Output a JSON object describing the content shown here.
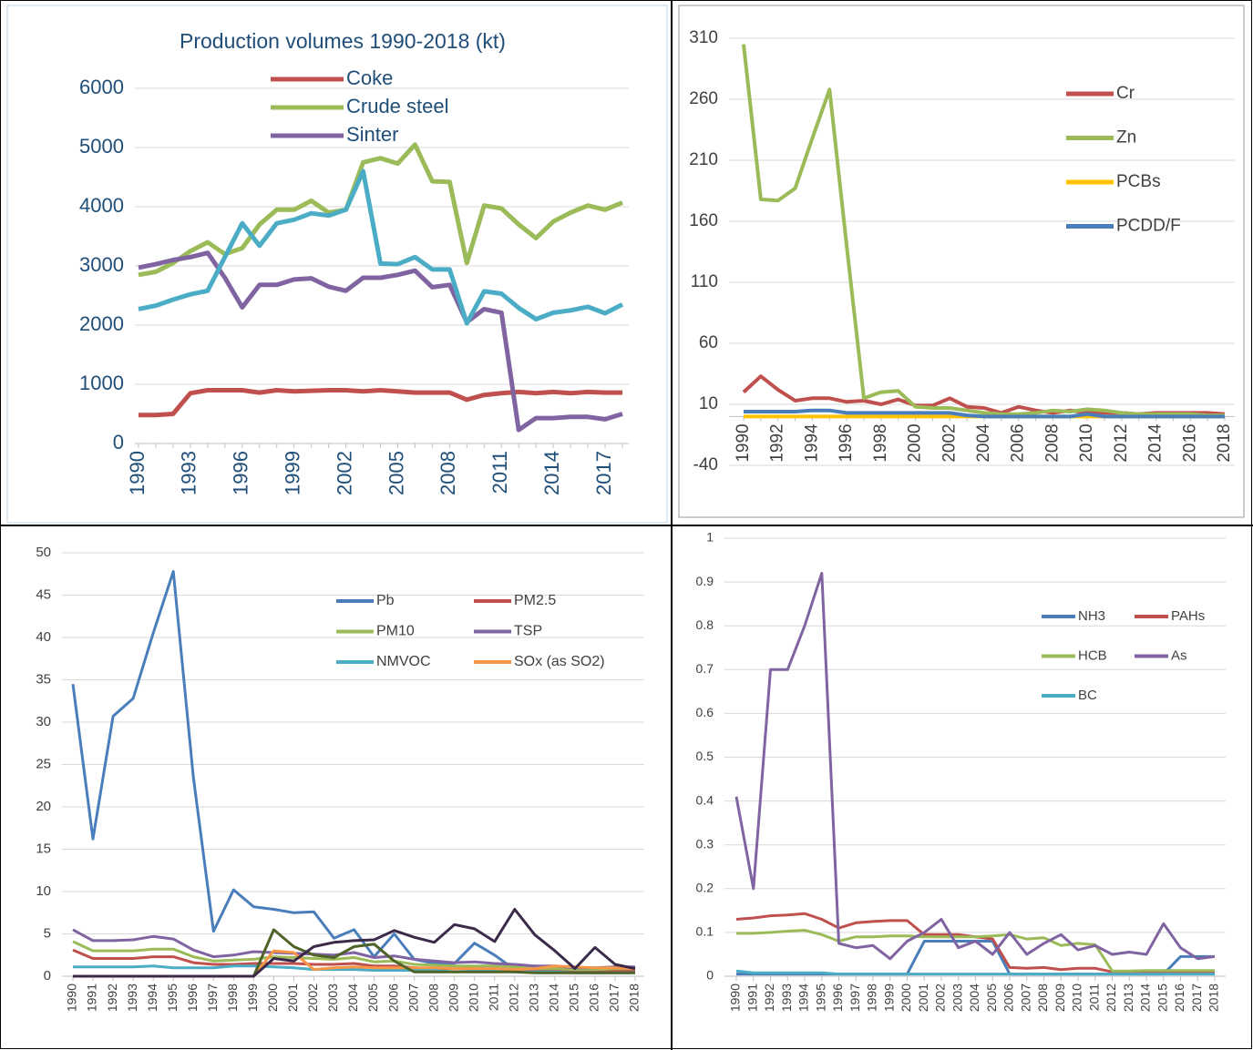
{
  "chart_data": [
    {
      "type": "line",
      "title": "Production volumes 1990-2018 (kt)",
      "categories": [
        "1990",
        null,
        null,
        "1993",
        null,
        null,
        "1996",
        null,
        null,
        "1999",
        null,
        null,
        "2002",
        null,
        null,
        "2005",
        null,
        null,
        "2008",
        null,
        null,
        "2011",
        null,
        null,
        "2014",
        null,
        null,
        "2017",
        null
      ],
      "ylim": [
        0,
        6000
      ],
      "yticks": [
        0,
        1000,
        2000,
        3000,
        4000,
        5000,
        6000
      ],
      "grid": true,
      "series": [
        {
          "name": "Coke",
          "color": "#c0504d",
          "values": [
            480,
            480,
            500,
            850,
            900,
            900,
            900,
            860,
            900,
            880,
            890,
            900,
            900,
            880,
            900,
            880,
            860,
            860,
            860,
            740,
            820,
            850,
            870,
            850,
            870,
            850,
            870,
            860,
            860
          ]
        },
        {
          "name": "Crude steel",
          "color": "#9bbb59",
          "values": [
            2850,
            2900,
            3050,
            3250,
            3400,
            3200,
            3300,
            3700,
            3950,
            3950,
            4100,
            3900,
            3950,
            4750,
            4820,
            4730,
            5050,
            4430,
            4420,
            3050,
            4020,
            3970,
            3700,
            3470,
            3750,
            3900,
            4020,
            3950,
            4070
          ]
        },
        {
          "name": "Sinter",
          "color": "#8064a2",
          "values": [
            2970,
            3030,
            3100,
            3150,
            3220,
            2800,
            2300,
            2680,
            2680,
            2770,
            2790,
            2650,
            2580,
            2800,
            2800,
            2850,
            2920,
            2640,
            2680,
            2050,
            2270,
            2210,
            230,
            430,
            430,
            450,
            450,
            410,
            500
          ]
        },
        {
          "color": "#4bacc6",
          "values": [
            2270,
            2330,
            2430,
            2520,
            2580,
            3150,
            3720,
            3340,
            3720,
            3780,
            3890,
            3850,
            3950,
            4600,
            3040,
            3030,
            3150,
            2940,
            2940,
            2030,
            2570,
            2530,
            2290,
            2100,
            2210,
            2250,
            2310,
            2200,
            2350
          ]
        }
      ]
    },
    {
      "type": "line",
      "categories": [
        "1990",
        null,
        "1992",
        null,
        "1994",
        null,
        "1996",
        null,
        "1998",
        null,
        "2000",
        null,
        "2002",
        null,
        "2004",
        null,
        "2006",
        null,
        "2008",
        null,
        "2010",
        null,
        "2012",
        null,
        "2014",
        null,
        "2016",
        null,
        "2018"
      ],
      "ylim": [
        -40,
        310
      ],
      "yticks": [
        -40,
        10,
        60,
        110,
        160,
        210,
        260,
        310
      ],
      "grid": true,
      "series": [
        {
          "name": "Cr",
          "color": "#c0504d",
          "values": [
            20,
            33,
            22,
            13,
            15,
            15,
            12,
            13,
            10,
            14,
            9,
            9,
            15,
            8,
            7,
            3,
            8,
            5,
            3,
            5,
            3,
            3,
            3,
            2,
            3,
            3,
            3,
            3,
            2
          ]
        },
        {
          "name": "Zn",
          "color": "#9bbb59",
          "values": [
            305,
            178,
            177,
            187,
            228,
            268,
            140,
            15,
            20,
            21,
            8,
            7,
            7,
            5,
            3,
            2,
            2,
            3,
            5,
            4,
            6,
            5,
            3,
            2,
            2,
            2,
            2,
            1,
            1
          ]
        },
        {
          "name": "PCBs",
          "color": "#ffc000",
          "values": [
            0,
            0,
            0,
            0,
            0,
            0,
            0,
            0,
            0,
            0,
            0,
            0,
            0,
            0,
            0,
            0,
            0,
            0,
            0,
            0,
            0,
            0,
            0,
            0,
            0,
            0,
            0,
            0,
            0
          ]
        },
        {
          "name": "PCDD/F",
          "color": "#4a7ebb",
          "values": [
            4,
            4,
            4,
            4,
            5,
            5,
            3,
            3,
            3,
            3,
            3,
            3,
            3,
            1,
            0,
            0,
            0,
            0,
            0,
            0,
            2,
            0,
            0,
            0,
            0,
            0,
            0,
            0,
            0
          ]
        }
      ]
    },
    {
      "type": "line",
      "categories": [
        "1990",
        "1991",
        "1992",
        "1993",
        "1994",
        "1995",
        "1996",
        "1997",
        "1998",
        "1999",
        "2000",
        "2001",
        "2002",
        "2003",
        "2004",
        "2005",
        "2006",
        "2007",
        "2008",
        "2009",
        "2010",
        "2011",
        "2012",
        "2013",
        "2014",
        "2015",
        "2016",
        "2017",
        "2018"
      ],
      "ylim": [
        0,
        50
      ],
      "yticks": [
        0,
        5,
        10,
        15,
        20,
        25,
        30,
        35,
        40,
        45,
        50
      ],
      "grid": true,
      "series": [
        {
          "name": "Pb",
          "color": "#4a7ebb",
          "values": [
            34.5,
            16.2,
            30.7,
            32.8,
            40.5,
            47.8,
            23.5,
            5.3,
            10.2,
            8.2,
            7.9,
            7.5,
            7.6,
            4.5,
            5.5,
            2.3,
            5,
            2,
            1.5,
            1.5,
            3.9,
            2.5,
            0.8,
            0.5,
            0.5,
            0.5,
            0.5,
            0.5,
            0.5
          ]
        },
        {
          "name": "PM2.5",
          "color": "#c0504d",
          "values": [
            3.1,
            2.1,
            2.1,
            2.1,
            2.3,
            2.3,
            1.6,
            1.4,
            1.4,
            1.5,
            1.5,
            1.5,
            1.4,
            1.4,
            1.5,
            1.2,
            1.2,
            1.0,
            0.9,
            0.9,
            0.9,
            0.9,
            0.8,
            0.7,
            0.7,
            0.6,
            0.6,
            0.7,
            0.7
          ]
        },
        {
          "name": "PM10",
          "color": "#9bbb59",
          "values": [
            4.1,
            3.0,
            3.0,
            3.0,
            3.2,
            3.2,
            2.3,
            1.8,
            1.9,
            2.0,
            2.3,
            2.2,
            2.1,
            2.0,
            2.2,
            1.7,
            1.8,
            1.4,
            1.3,
            1.2,
            1.2,
            1.2,
            1.1,
            0.9,
            0.9,
            0.8,
            0.8,
            0.9,
            0.9
          ]
        },
        {
          "name": "TSP",
          "color": "#8064a2",
          "values": [
            5.5,
            4.2,
            4.2,
            4.3,
            4.7,
            4.4,
            3.1,
            2.3,
            2.5,
            2.9,
            2.8,
            2.7,
            2.6,
            2.5,
            2.8,
            2.2,
            2.4,
            2.0,
            1.8,
            1.6,
            1.7,
            1.5,
            1.4,
            1.2,
            1.2,
            1.0,
            1.0,
            1.1,
            1.1
          ]
        },
        {
          "name": "NMVOC",
          "color": "#4bacc6",
          "values": [
            1.1,
            1.1,
            1.1,
            1.1,
            1.2,
            1.0,
            1.0,
            1.0,
            1.2,
            1.2,
            1.1,
            1.0,
            0.8,
            0.8,
            0.8,
            0.7,
            0.7,
            0.7,
            0.7,
            0.5,
            0.6,
            0.6,
            0.5,
            0.5,
            0.5,
            0.4,
            0.4,
            0.4,
            0.4
          ]
        },
        {
          "name": "SOx (as SO2)",
          "color": "#f79646",
          "values": [
            0,
            0,
            0,
            0,
            0,
            0,
            0,
            0,
            0,
            0,
            3.0,
            2.8,
            0.8,
            1.0,
            1.1,
            1.0,
            1.0,
            1.0,
            1.0,
            0.9,
            0.9,
            0.9,
            0.8,
            0.9,
            1.2,
            1.1,
            1.0,
            1.0,
            0.9
          ]
        },
        {
          "color": "#4f6228",
          "values": [
            0,
            0,
            0,
            0,
            0,
            0,
            0,
            0,
            0,
            0,
            5.5,
            3.5,
            2.5,
            2.2,
            3.5,
            3.8,
            1.8,
            0.5,
            0.5,
            0.5,
            0.5,
            0.5,
            0.5,
            0.4,
            0.4,
            0.4,
            0.4,
            0.4,
            0.4
          ]
        },
        {
          "color": "#3b2a4a",
          "values": [
            0,
            0,
            0,
            0,
            0,
            0,
            0,
            0,
            0,
            0,
            2.1,
            1.8,
            3.5,
            4.0,
            4.2,
            4.3,
            5.4,
            4.6,
            4.0,
            6.1,
            5.6,
            4.1,
            7.9,
            4.9,
            3.0,
            0.9,
            3.4,
            1.4,
            0.9
          ]
        }
      ]
    },
    {
      "type": "line",
      "categories": [
        "1990",
        "1991",
        "1992",
        "1993",
        "1994",
        "1995",
        "1996",
        "1997",
        "1998",
        "1999",
        "2000",
        "2001",
        "2002",
        "2003",
        "2004",
        "2005",
        "2006",
        "2007",
        "2008",
        "2009",
        "2010",
        "2011",
        "2012",
        "2013",
        "2014",
        "2015",
        "2016",
        "2017",
        "2018"
      ],
      "ylim": [
        0,
        1
      ],
      "yticks": [
        0,
        0.1,
        0.2,
        0.3,
        0.4,
        0.5,
        0.6,
        0.7,
        0.8,
        0.9,
        1
      ],
      "grid": true,
      "series": [
        {
          "name": "NH3",
          "color": "#4a7ebb",
          "values": [
            0.005,
            0.005,
            0.005,
            0.005,
            0.005,
            0.005,
            0.005,
            0.005,
            0.005,
            0.005,
            0.005,
            0.08,
            0.08,
            0.08,
            0.08,
            0.08,
            0.005,
            0.005,
            0.005,
            0.005,
            0.005,
            0.005,
            0.005,
            0.005,
            0.005,
            0.005,
            0.045,
            0.045,
            0.045
          ]
        },
        {
          "name": "PAHs",
          "color": "#c0504d",
          "values": [
            0.13,
            0.133,
            0.138,
            0.14,
            0.143,
            0.13,
            0.11,
            0.122,
            0.125,
            0.127,
            0.127,
            0.095,
            0.095,
            0.095,
            0.09,
            0.085,
            0.02,
            0.018,
            0.02,
            0.015,
            0.018,
            0.018,
            0.01,
            0.01,
            0.01,
            0.01,
            0.01,
            0.01,
            0.01
          ]
        },
        {
          "name": "HCB",
          "color": "#9bbb59",
          "values": [
            0.098,
            0.098,
            0.1,
            0.103,
            0.105,
            0.095,
            0.08,
            0.09,
            0.09,
            0.092,
            0.092,
            0.09,
            0.09,
            0.09,
            0.09,
            0.092,
            0.095,
            0.085,
            0.088,
            0.07,
            0.075,
            0.072,
            0.012,
            0.012,
            0.013,
            0.013,
            0.013,
            0.013,
            0.013
          ]
        },
        {
          "name": "As",
          "color": "#8064a2",
          "values": [
            0.41,
            0.2,
            0.7,
            0.7,
            0.8,
            0.92,
            0.075,
            0.065,
            0.07,
            0.04,
            0.08,
            0.1,
            0.13,
            0.065,
            0.08,
            0.05,
            0.1,
            0.05,
            0.075,
            0.095,
            0.06,
            0.07,
            0.05,
            0.055,
            0.05,
            0.12,
            0.065,
            0.04,
            0.045
          ]
        },
        {
          "name": "BC",
          "color": "#4bacc6",
          "values": [
            0.012,
            0.008,
            0.008,
            0.008,
            0.008,
            0.008,
            0.005,
            0.005,
            0.005,
            0.005,
            0.005,
            0.005,
            0.005,
            0.005,
            0.005,
            0.005,
            0.005,
            0.005,
            0.005,
            0.005,
            0.005,
            0.005,
            0.005,
            0.005,
            0.005,
            0.005,
            0.005,
            0.005,
            0.005
          ]
        }
      ]
    }
  ]
}
